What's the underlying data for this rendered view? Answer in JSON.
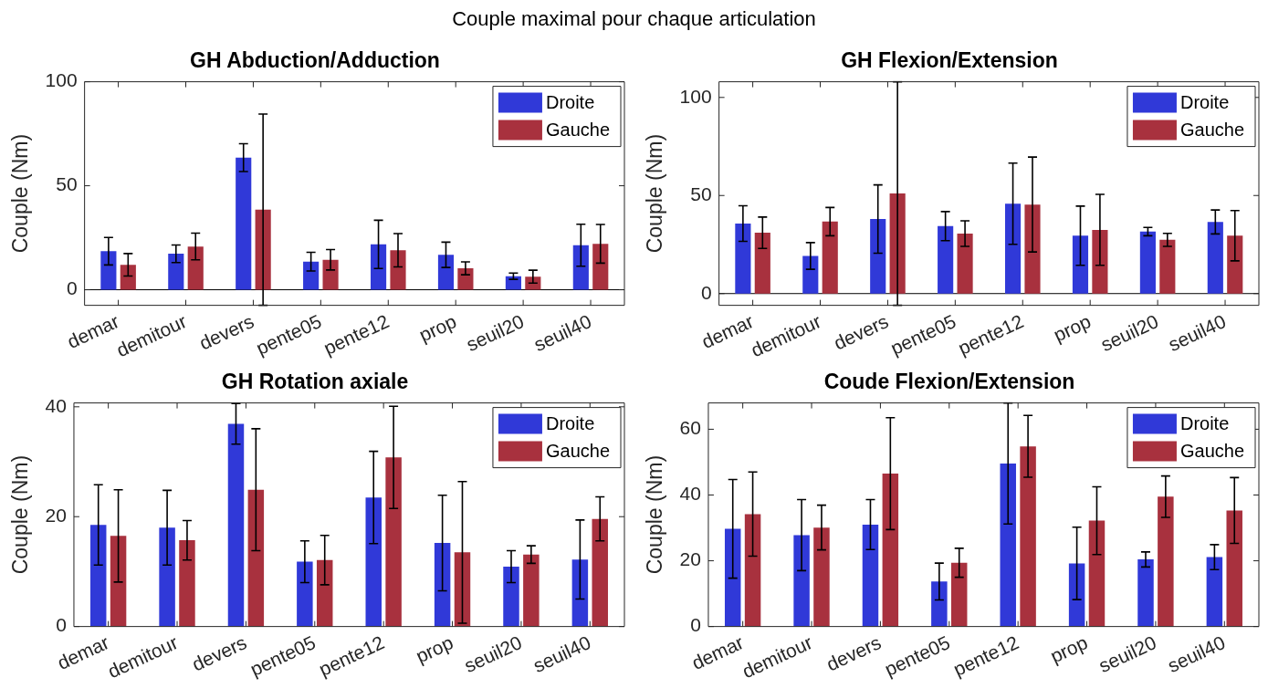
{
  "chart_data": [
    {
      "type": "other",
      "title": "Couple maximal pour chaque articulation"
    },
    {
      "type": "bar",
      "title": "GH Abduction/Adduction",
      "ylabel": "Couple (Nm)",
      "categories": [
        "demar",
        "demitour",
        "devers",
        "pente05",
        "pente12",
        "prop",
        "seuil20",
        "seuil40"
      ],
      "ylim": [
        -7.5,
        100
      ],
      "yticks": [
        0,
        50,
        100
      ],
      "grid": false,
      "legend": "top right",
      "ref_lines": [
        {
          "axis": "y",
          "value": 0,
          "color": "#000000"
        }
      ],
      "series": [
        {
          "name": "Droite",
          "color": "#3039d8",
          "values": [
            18.5,
            17.3,
            63.5,
            13.5,
            21.8,
            16.8,
            6.5,
            21.4
          ],
          "errors": [
            6.6,
            4.2,
            6.7,
            4.5,
            11.6,
            6.1,
            1.5,
            10.1
          ]
        },
        {
          "name": "Gauche",
          "color": "#a8313e",
          "values": [
            12.0,
            20.8,
            38.5,
            14.4,
            19.0,
            10.3,
            6.3,
            22.1
          ],
          "errors": [
            5.4,
            6.4,
            46,
            4.9,
            8.0,
            3.1,
            3.1,
            9.3
          ]
        }
      ]
    },
    {
      "type": "bar",
      "title": "GH Flexion/Extension",
      "ylabel": "Couple (Nm)",
      "categories": [
        "demar",
        "demitour",
        "devers",
        "pente05",
        "pente12",
        "prop",
        "seuil20",
        "seuil40"
      ],
      "ylim": [
        -6,
        108
      ],
      "yticks": [
        0,
        50,
        100
      ],
      "grid": false,
      "legend": "top right",
      "ref_lines": [
        {
          "axis": "y",
          "value": 0,
          "color": "#000000"
        }
      ],
      "series": [
        {
          "name": "Droite",
          "color": "#3039d8",
          "values": [
            35.7,
            19.2,
            38.0,
            34.4,
            45.8,
            29.5,
            31.6,
            36.5
          ],
          "errors": [
            9.1,
            6.8,
            17.4,
            7.4,
            20.7,
            15.1,
            2.1,
            6.1
          ]
        },
        {
          "name": "Gauche",
          "color": "#a8313e",
          "values": [
            31.0,
            36.7,
            51,
            30.6,
            45.4,
            32.5,
            27.4,
            29.5
          ],
          "errors": [
            8.0,
            7.2,
            57,
            6.5,
            24.2,
            18.1,
            3.3,
            12.8
          ]
        }
      ]
    },
    {
      "type": "bar",
      "title": "GH Rotation axiale",
      "ylabel": "Couple (Nm)",
      "categories": [
        "demar",
        "demitour",
        "devers",
        "pente05",
        "pente12",
        "prop",
        "seuil20",
        "seuil40"
      ],
      "ylim": [
        0,
        40.7
      ],
      "yticks": [
        0,
        20,
        40
      ],
      "grid": false,
      "legend": "top right",
      "series": [
        {
          "name": "Droite",
          "color": "#3039d8",
          "values": [
            18.5,
            18.0,
            36.9,
            11.8,
            23.5,
            15.2,
            10.9,
            12.2
          ],
          "errors": [
            7.3,
            6.8,
            3.7,
            3.8,
            8.4,
            8.7,
            2.9,
            7.2
          ]
        },
        {
          "name": "Gauche",
          "color": "#a8313e",
          "values": [
            16.5,
            15.7,
            24.9,
            12.1,
            30.8,
            13.5,
            13.1,
            19.6
          ],
          "errors": [
            8.4,
            3.6,
            11.1,
            4.5,
            9.3,
            12.9,
            1.6,
            4.0
          ]
        }
      ]
    },
    {
      "type": "bar",
      "title": "Coude Flexion/Extension",
      "ylabel": "Couple (Nm)",
      "categories": [
        "demar",
        "demitour",
        "devers",
        "pente05",
        "pente12",
        "prop",
        "seuil20",
        "seuil40"
      ],
      "ylim": [
        0,
        68
      ],
      "yticks": [
        0,
        20,
        40,
        60
      ],
      "grid": false,
      "legend": "top right",
      "series": [
        {
          "name": "Droite",
          "color": "#3039d8",
          "values": [
            29.7,
            27.8,
            31.0,
            13.7,
            49.6,
            19.2,
            20.4,
            21.1
          ],
          "errors": [
            15.0,
            10.8,
            7.6,
            5.6,
            18.4,
            11.0,
            2.3,
            3.8
          ]
        },
        {
          "name": "Gauche",
          "color": "#a8313e",
          "values": [
            34.2,
            30.1,
            46.5,
            19.4,
            54.8,
            32.2,
            39.5,
            35.3
          ],
          "errors": [
            12.8,
            6.8,
            17.0,
            4.4,
            9.4,
            10.3,
            6.3,
            10.0
          ]
        }
      ]
    }
  ]
}
